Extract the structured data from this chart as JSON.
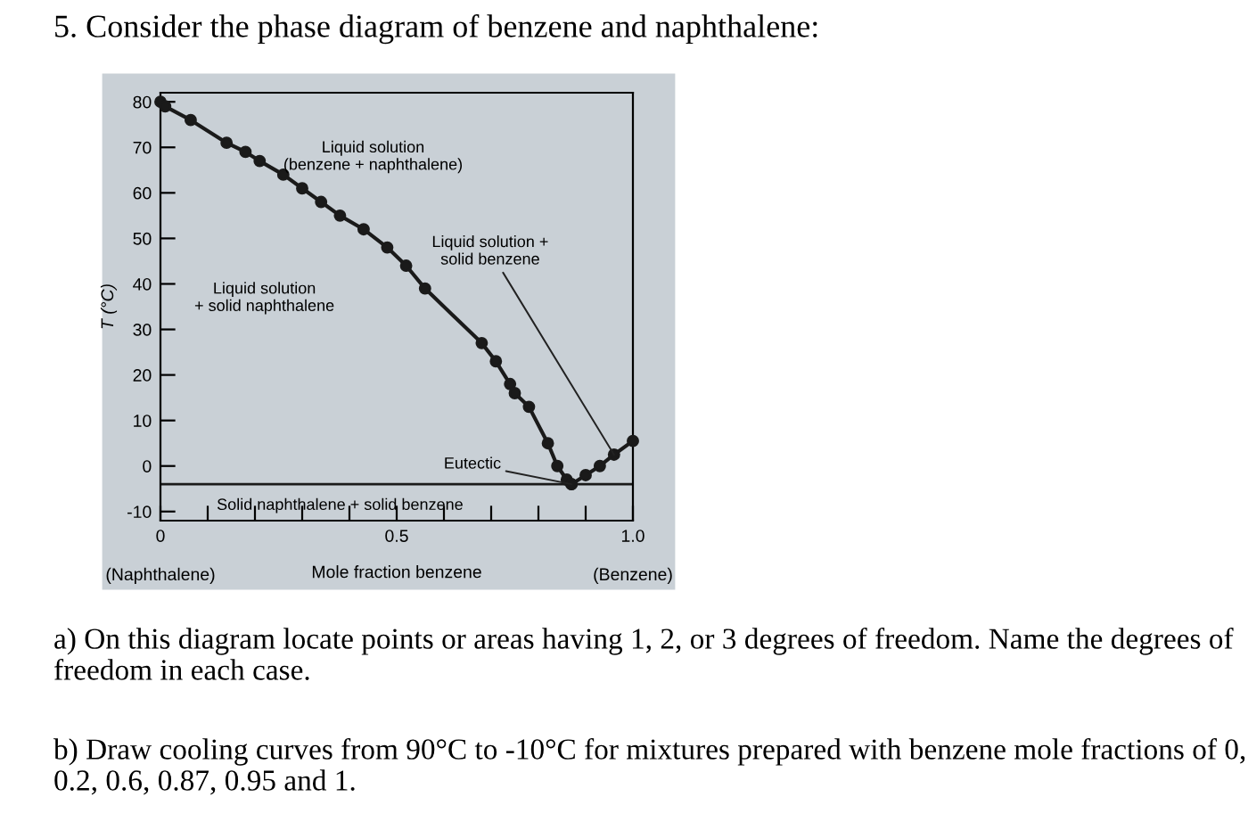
{
  "chart_data": {
    "type": "line",
    "title": "5. Consider the phase diagram of benzene and naphthalene:",
    "xlabel": "Mole fraction benzene",
    "ylabel": "T (°C)",
    "xlim": [
      0,
      1.0
    ],
    "ylim": [
      -12,
      82
    ],
    "xticks": [
      0,
      {
        "value": 0.1,
        "label": null
      },
      {
        "value": 0.2,
        "label": null
      },
      {
        "value": 0.3,
        "label": null
      },
      {
        "value": 0.4,
        "label": null
      },
      0.5,
      {
        "value": 0.6,
        "label": null
      },
      {
        "value": 0.7,
        "label": null
      },
      {
        "value": 0.8,
        "label": null
      },
      {
        "value": 0.9,
        "label": null
      },
      {
        "value": 1.0,
        "label": "1.0"
      }
    ],
    "yticks": [
      -10,
      0,
      10,
      20,
      30,
      40,
      50,
      60,
      70,
      80
    ],
    "grid": false,
    "marker": "circle",
    "line_style": "solid",
    "series": [
      {
        "color": "#1a1a1a",
        "x": [
          0,
          0.01,
          0.064,
          0.14,
          0.18,
          0.21,
          0.26,
          0.3,
          0.34,
          0.38,
          0.43,
          0.48,
          0.52,
          0.56,
          0.68,
          0.71,
          0.74,
          0.75,
          0.78,
          0.82,
          0.84,
          0.86,
          0.87
        ],
        "values": [
          80,
          79,
          76,
          71,
          69,
          67,
          64,
          61,
          58,
          55,
          52,
          48,
          44,
          39,
          27,
          23,
          18,
          16,
          13,
          5,
          0,
          -3,
          -4
        ]
      },
      {
        "color": "#1a1a1a",
        "x": [
          0.87,
          0.9,
          0.93,
          0.96,
          1.0
        ],
        "values": [
          -4,
          -2,
          0,
          2.5,
          5.5
        ]
      }
    ],
    "ref_lines": [
      {
        "axis": "y",
        "value": -4,
        "color": "#1a1a1a"
      }
    ],
    "annotations": [
      "Liquid solution\n(benzene + naphthalene)",
      "Liquid solution\n+ solid naphthalene",
      {
        "text": "Liquid solution +\nsolid benzene",
        "x": 0.96,
        "y": 2.5
      },
      {
        "text": "Eutectic",
        "x": 0.87,
        "y": -4
      },
      "Solid naphthalene + solid benzene",
      "(Naphthalene)",
      "(Benzene)",
      "a) On this diagram locate points or areas having 1, 2, or 3 degrees of freedom. Name the degrees of freedom in each case.",
      "b) Draw cooling curves from 90°C to -10°C for mixtures prepared with benzene mole fractions of 0, 0.2, 0.6, 0.87, 0.95 and 1."
    ]
  }
}
